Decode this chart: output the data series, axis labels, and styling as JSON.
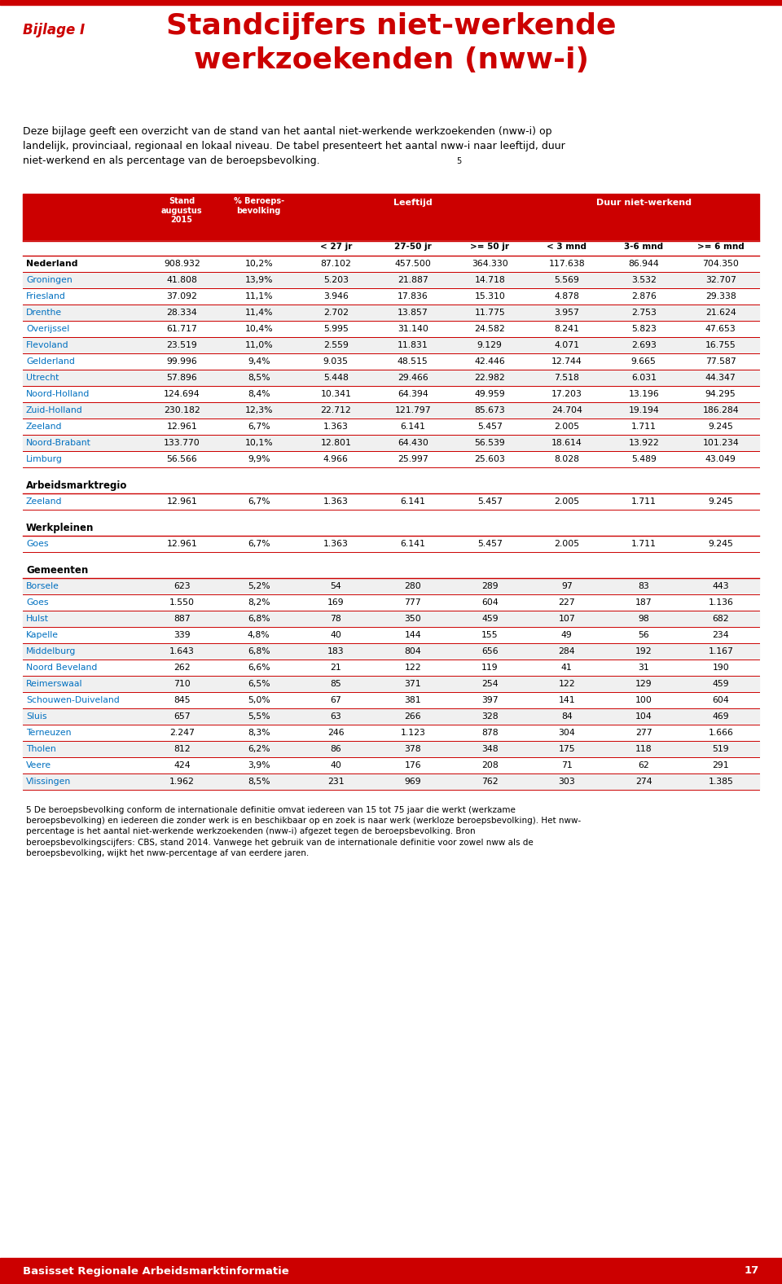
{
  "title_bijlage": "Bijlage I",
  "title_main": "Standcijfers niet-werkende\nwerkzoekenden (nww-i)",
  "intro_text": "Deze bijlage geeft een overzicht van de stand van het aantal niet-werkende werkzoekenden (nww-i) op\nlandelijk, provinciaal, regionaal en lokaal niveau. De tabel presenteert het aantal nww-i naar leeftijd, duur\nniet-werkend en als percentage van de beroepsbevolking.",
  "footnote_sup": "5",
  "section_nederland": {
    "label": "Nederland",
    "data": [
      "908.932",
      "10,2%",
      "87.102",
      "457.500",
      "364.330",
      "117.638",
      "86.944",
      "704.350"
    ]
  },
  "provincies": [
    {
      "name": "Groningen",
      "data": [
        "41.808",
        "13,9%",
        "5.203",
        "21.887",
        "14.718",
        "5.569",
        "3.532",
        "32.707"
      ]
    },
    {
      "name": "Friesland",
      "data": [
        "37.092",
        "11,1%",
        "3.946",
        "17.836",
        "15.310",
        "4.878",
        "2.876",
        "29.338"
      ]
    },
    {
      "name": "Drenthe",
      "data": [
        "28.334",
        "11,4%",
        "2.702",
        "13.857",
        "11.775",
        "3.957",
        "2.753",
        "21.624"
      ]
    },
    {
      "name": "Overijssel",
      "data": [
        "61.717",
        "10,4%",
        "5.995",
        "31.140",
        "24.582",
        "8.241",
        "5.823",
        "47.653"
      ]
    },
    {
      "name": "Flevoland",
      "data": [
        "23.519",
        "11,0%",
        "2.559",
        "11.831",
        "9.129",
        "4.071",
        "2.693",
        "16.755"
      ]
    },
    {
      "name": "Gelderland",
      "data": [
        "99.996",
        "9,4%",
        "9.035",
        "48.515",
        "42.446",
        "12.744",
        "9.665",
        "77.587"
      ]
    },
    {
      "name": "Utrecht",
      "data": [
        "57.896",
        "8,5%",
        "5.448",
        "29.466",
        "22.982",
        "7.518",
        "6.031",
        "44.347"
      ]
    },
    {
      "name": "Noord-Holland",
      "data": [
        "124.694",
        "8,4%",
        "10.341",
        "64.394",
        "49.959",
        "17.203",
        "13.196",
        "94.295"
      ]
    },
    {
      "name": "Zuid-Holland",
      "data": [
        "230.182",
        "12,3%",
        "22.712",
        "121.797",
        "85.673",
        "24.704",
        "19.194",
        "186.284"
      ]
    },
    {
      "name": "Zeeland",
      "data": [
        "12.961",
        "6,7%",
        "1.363",
        "6.141",
        "5.457",
        "2.005",
        "1.711",
        "9.245"
      ]
    },
    {
      "name": "Noord-Brabant",
      "data": [
        "133.770",
        "10,1%",
        "12.801",
        "64.430",
        "56.539",
        "18.614",
        "13.922",
        "101.234"
      ]
    },
    {
      "name": "Limburg",
      "data": [
        "56.566",
        "9,9%",
        "4.966",
        "25.997",
        "25.603",
        "8.028",
        "5.489",
        "43.049"
      ]
    }
  ],
  "arbeidsmarktregio_label": "Arbeidsmarktregio",
  "arbeidsmarktregio": [
    {
      "name": "Zeeland",
      "data": [
        "12.961",
        "6,7%",
        "1.363",
        "6.141",
        "5.457",
        "2.005",
        "1.711",
        "9.245"
      ]
    }
  ],
  "werkpleinen_label": "Werkpleinen",
  "werkpleinen": [
    {
      "name": "Goes",
      "data": [
        "12.961",
        "6,7%",
        "1.363",
        "6.141",
        "5.457",
        "2.005",
        "1.711",
        "9.245"
      ]
    }
  ],
  "gemeenten_label": "Gemeenten",
  "gemeenten": [
    {
      "name": "Borsele",
      "data": [
        "623",
        "5,2%",
        "54",
        "280",
        "289",
        "97",
        "83",
        "443"
      ]
    },
    {
      "name": "Goes",
      "data": [
        "1.550",
        "8,2%",
        "169",
        "777",
        "604",
        "227",
        "187",
        "1.136"
      ]
    },
    {
      "name": "Hulst",
      "data": [
        "887",
        "6,8%",
        "78",
        "350",
        "459",
        "107",
        "98",
        "682"
      ]
    },
    {
      "name": "Kapelle",
      "data": [
        "339",
        "4,8%",
        "40",
        "144",
        "155",
        "49",
        "56",
        "234"
      ]
    },
    {
      "name": "Middelburg",
      "data": [
        "1.643",
        "6,8%",
        "183",
        "804",
        "656",
        "284",
        "192",
        "1.167"
      ]
    },
    {
      "name": "Noord Beveland",
      "data": [
        "262",
        "6,6%",
        "21",
        "122",
        "119",
        "41",
        "31",
        "190"
      ]
    },
    {
      "name": "Reimerswaal",
      "data": [
        "710",
        "6,5%",
        "85",
        "371",
        "254",
        "122",
        "129",
        "459"
      ]
    },
    {
      "name": "Schouwen-Duiveland",
      "data": [
        "845",
        "5,0%",
        "67",
        "381",
        "397",
        "141",
        "100",
        "604"
      ]
    },
    {
      "name": "Sluis",
      "data": [
        "657",
        "5,5%",
        "63",
        "266",
        "328",
        "84",
        "104",
        "469"
      ]
    },
    {
      "name": "Terneuzen",
      "data": [
        "2.247",
        "8,3%",
        "246",
        "1.123",
        "878",
        "304",
        "277",
        "1.666"
      ]
    },
    {
      "name": "Tholen",
      "data": [
        "812",
        "6,2%",
        "86",
        "378",
        "348",
        "175",
        "118",
        "519"
      ]
    },
    {
      "name": "Veere",
      "data": [
        "424",
        "3,9%",
        "40",
        "176",
        "208",
        "71",
        "62",
        "291"
      ]
    },
    {
      "name": "Vlissingen",
      "data": [
        "1.962",
        "8,5%",
        "231",
        "969",
        "762",
        "303",
        "274",
        "1.385"
      ]
    }
  ],
  "footer_text": "5 De beroepsbevolking conform de internationale definitie omvat iedereen van 15 tot 75 jaar die werkt (werkzame\nberoepsbevolking) en iedereen die zonder werk is en beschikbaar op en zoek is naar werk (werkloze beroepsbevolking). Het nww-\npercentage is het aantal niet-werkende werkzoekenden (nww-i) afgezet tegen de beroepsbevolking. Bron\nberoepsbevolkingscijfers: CBS, stand 2014. Vanwege het gebruik van de internationale definitie voor zowel nww als de\nberoepsbevolking, wijkt het nww-percentage af van eerdere jaren.",
  "footer_bar_text": "Basisset Regionale Arbeidsmarktinformatie",
  "footer_page": "17",
  "color_red": "#CC0000",
  "color_blue": "#0070C0",
  "color_header_bg": "#CC0000",
  "color_header_text": "#FFFFFF",
  "color_row_alt": "#F0F0F0",
  "color_row_normal": "#FFFFFF",
  "color_border": "#CC0000",
  "top_bar_color": "#CC0000",
  "bottom_bar_color": "#CC0000"
}
